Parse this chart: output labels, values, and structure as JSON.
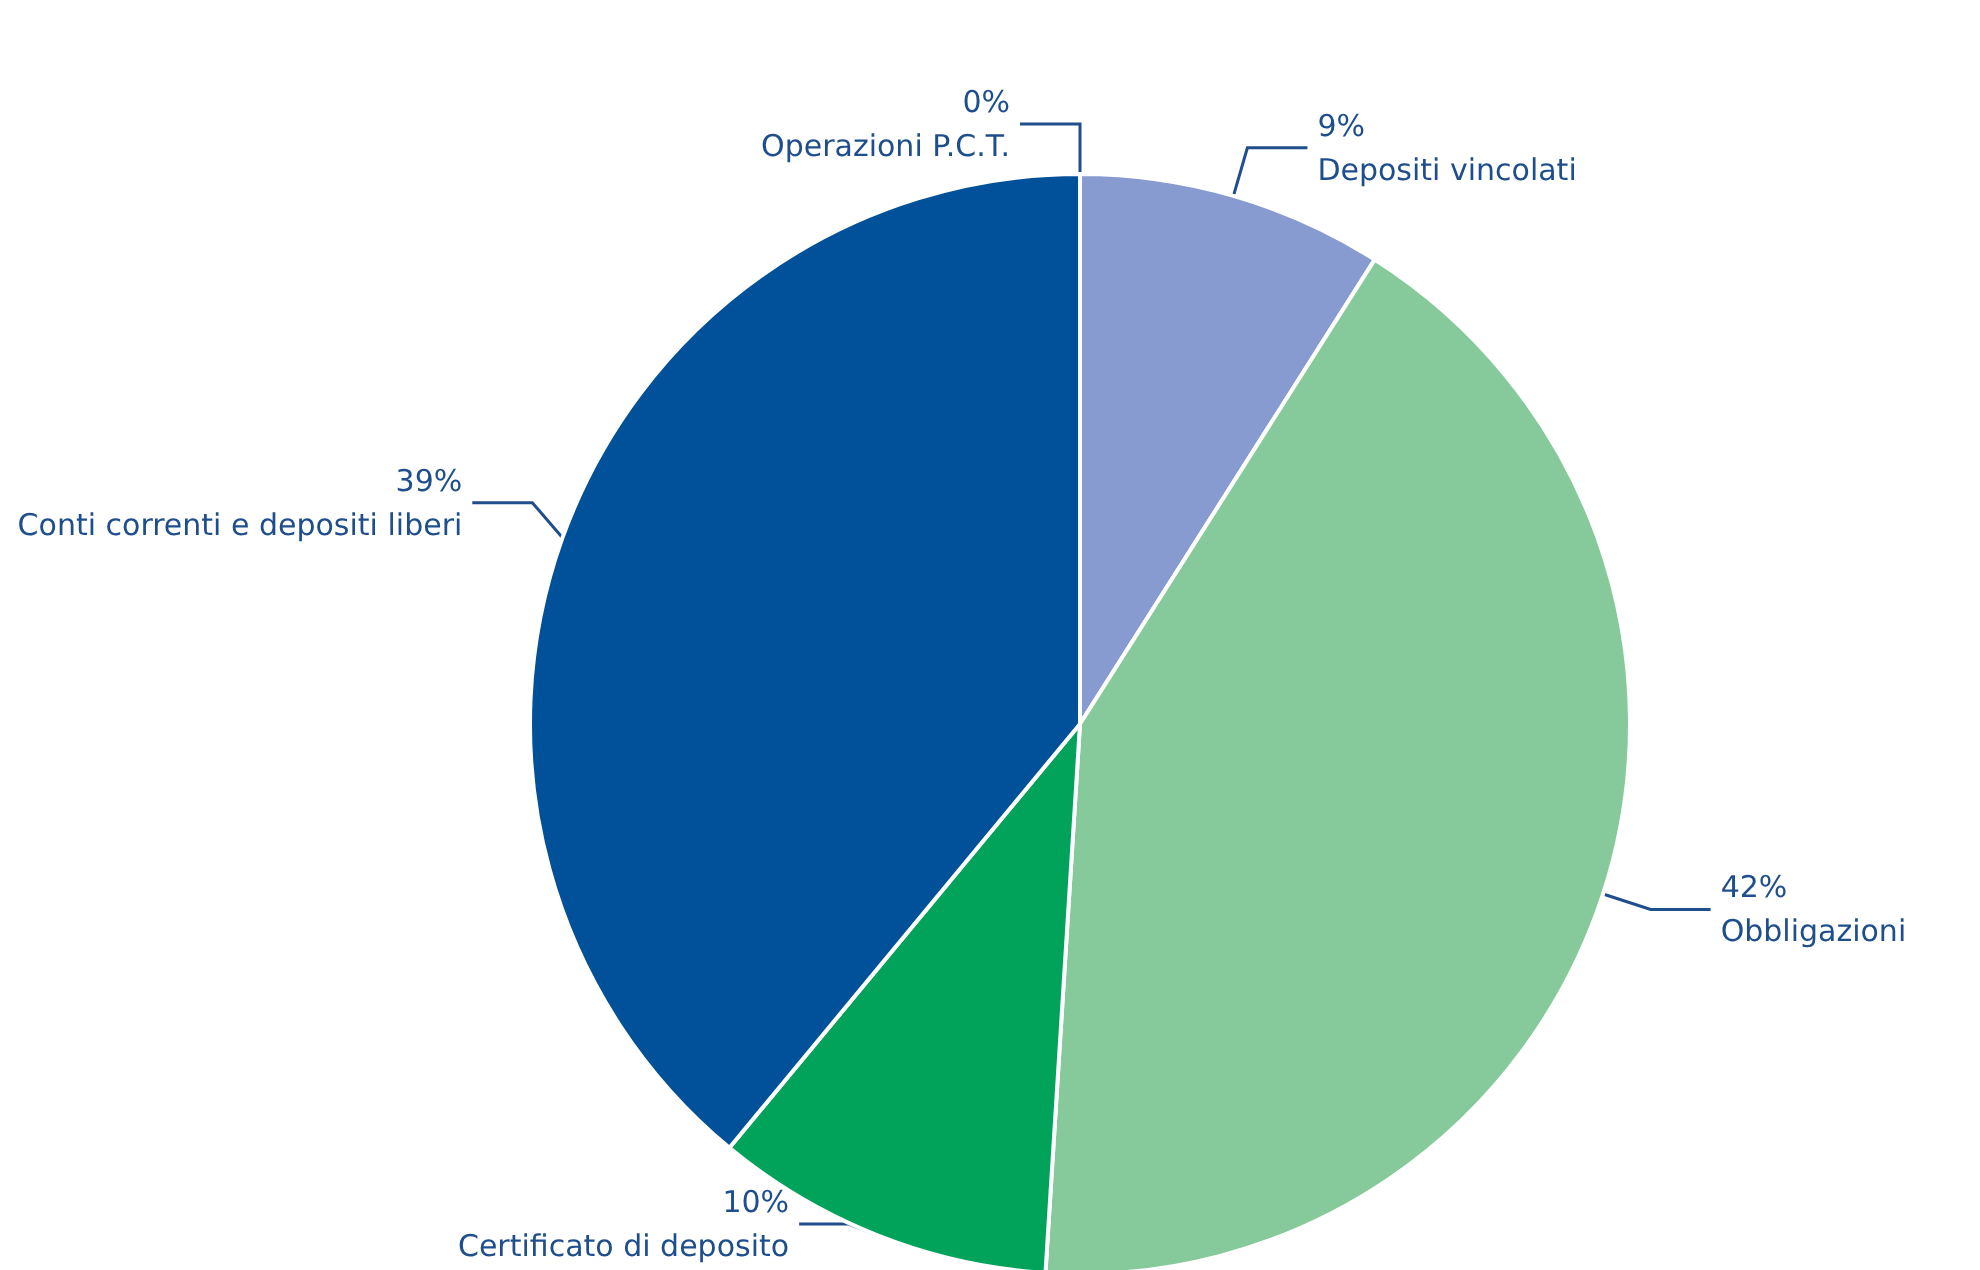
{
  "chart_data": {
    "type": "pie",
    "categories": [
      "Operazioni P.C.T.",
      "Depositi vincolati",
      "Obbligazioni",
      "Certificato di deposito",
      "Conti correnti e depositi liberi"
    ],
    "values": [
      0,
      9,
      42,
      10,
      39
    ],
    "value_labels": [
      "0%",
      "9%",
      "42%",
      "10%",
      "39%"
    ],
    "colors": [
      "#ffffff",
      "#879bd0",
      "#86c99b",
      "#00a359",
      "#00519a"
    ]
  }
}
